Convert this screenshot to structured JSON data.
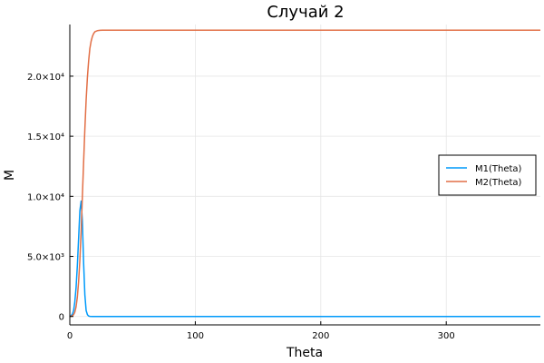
{
  "chart_data": {
    "type": "line",
    "title": "Случай 2",
    "xlabel": "Theta",
    "ylabel": "M",
    "xlim": [
      0,
      375
    ],
    "ylim": [
      -700,
      24300
    ],
    "x_ticks": [
      {
        "value": 0,
        "label": "0"
      },
      {
        "value": 100,
        "label": "100"
      },
      {
        "value": 200,
        "label": "200"
      },
      {
        "value": 300,
        "label": "300"
      }
    ],
    "y_ticks": [
      {
        "value": 0,
        "label": "0"
      },
      {
        "value": 5000,
        "label": "5.0×10³"
      },
      {
        "value": 10000,
        "label": "1.0×10⁴"
      },
      {
        "value": 15000,
        "label": "1.5×10⁴"
      },
      {
        "value": 20000,
        "label": "2.0×10⁴"
      }
    ],
    "grid": true,
    "legend_position": "right",
    "series": [
      {
        "name": "M1(Theta)",
        "color": "#009AFA",
        "x": [
          0,
          1,
          2,
          3,
          4,
          5,
          6,
          7,
          8,
          9,
          10,
          11,
          12,
          13,
          14,
          15,
          16,
          18,
          20,
          25,
          50,
          100,
          200,
          300,
          375
        ],
        "y": [
          0,
          60,
          180,
          500,
          1200,
          2400,
          4200,
          6500,
          8800,
          9600,
          8000,
          4500,
          1800,
          500,
          150,
          40,
          10,
          0,
          0,
          0,
          0,
          0,
          0,
          0,
          0
        ]
      },
      {
        "name": "M2(Theta)",
        "color": "#E26F46",
        "x": [
          0,
          1,
          2,
          3,
          4,
          5,
          6,
          7,
          8,
          9,
          10,
          11,
          12,
          13,
          14,
          15,
          16,
          17,
          18,
          19,
          20,
          22,
          24,
          26,
          30,
          40,
          100,
          200,
          300,
          375
        ],
        "y": [
          0,
          20,
          60,
          150,
          350,
          800,
          1600,
          2900,
          4700,
          7100,
          9900,
          12800,
          15600,
          18000,
          19900,
          21300,
          22300,
          22900,
          23300,
          23550,
          23700,
          23790,
          23820,
          23830,
          23830,
          23830,
          23830,
          23830,
          23830,
          23830
        ]
      }
    ]
  }
}
